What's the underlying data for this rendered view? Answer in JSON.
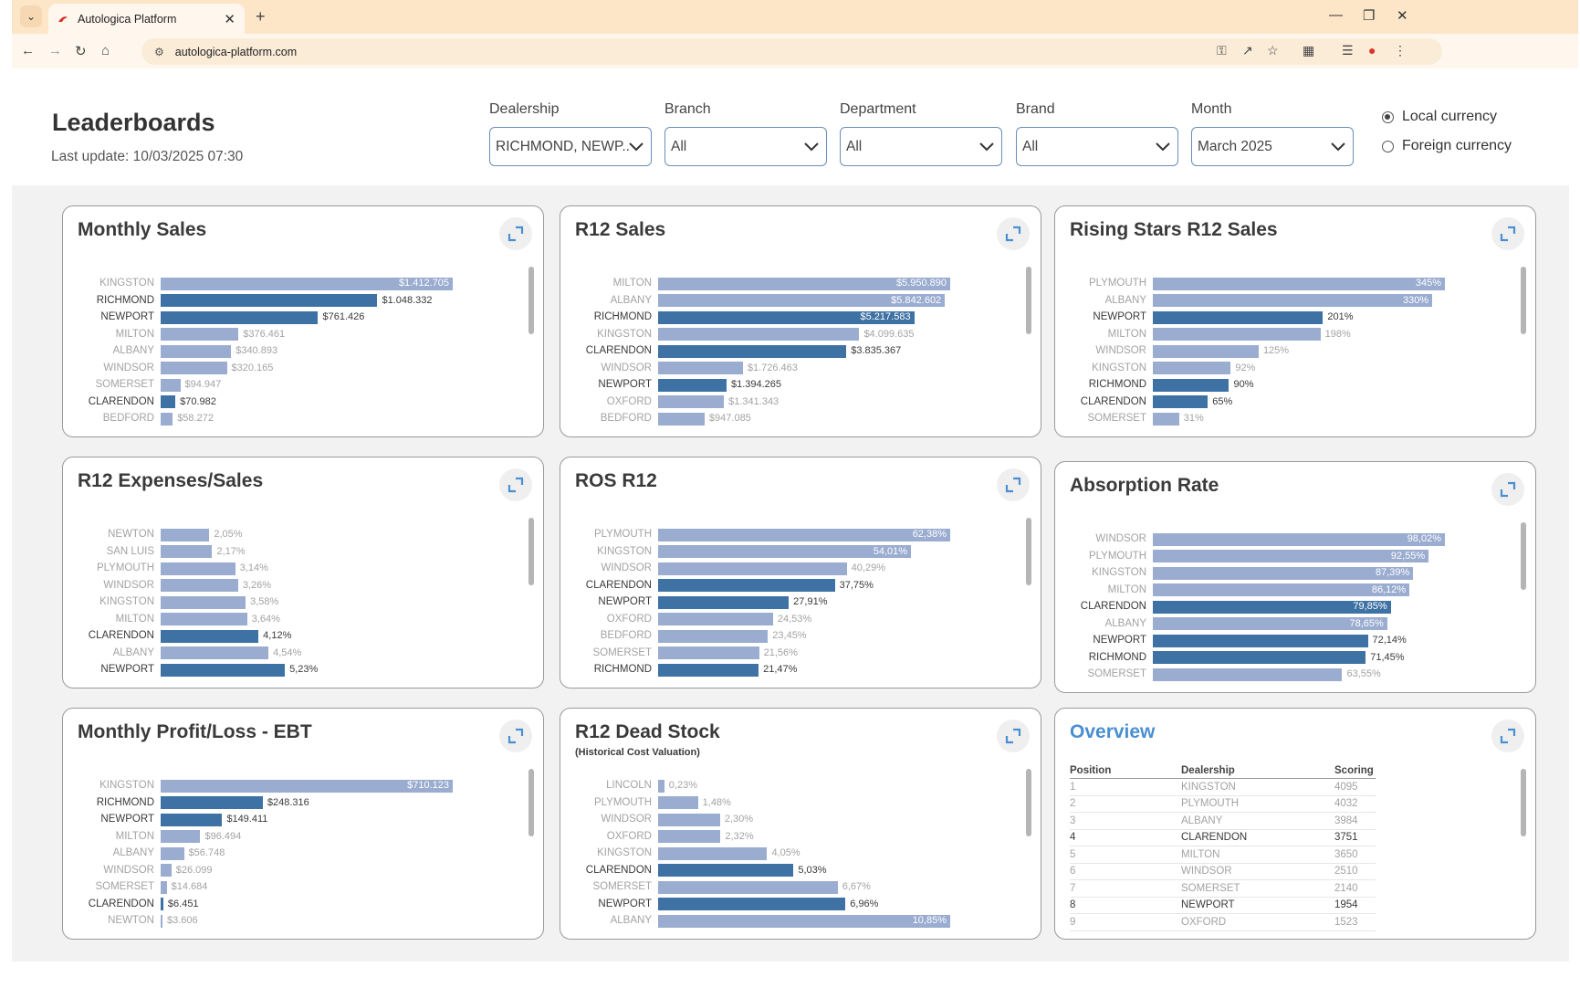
{
  "browser": {
    "tab_title": "Autologica Platform",
    "url": "autologica-platform.com"
  },
  "header": {
    "title": "Leaderboards",
    "last_update": "Last update: 10/03/2025 07:30"
  },
  "filters": {
    "dealership": {
      "label": "Dealership",
      "value": "RICHMOND, NEWP..."
    },
    "branch": {
      "label": "Branch",
      "value": "All"
    },
    "department": {
      "label": "Department",
      "value": "All"
    },
    "brand": {
      "label": "Brand",
      "value": "All"
    },
    "month": {
      "label": "Month",
      "value": "March 2025"
    }
  },
  "currency": {
    "local": "Local currency",
    "foreign": "Foreign currency",
    "selected": "local"
  },
  "colors": {
    "highlight": "#3e72a4",
    "other": "#9aacd0",
    "accent": "#4a8fd1"
  },
  "cards": [
    {
      "title": "Monthly Sales",
      "subtitle": "",
      "max": 1412705,
      "rows": [
        {
          "label": "KINGSTON",
          "value": 1412705,
          "text": "$1.412.705",
          "hl": false
        },
        {
          "label": "RICHMOND",
          "value": 1048332,
          "text": "$1.048.332",
          "hl": true
        },
        {
          "label": "NEWPORT",
          "value": 761426,
          "text": "$761.426",
          "hl": true
        },
        {
          "label": "MILTON",
          "value": 376461,
          "text": "$376.461",
          "hl": false
        },
        {
          "label": "ALBANY",
          "value": 340893,
          "text": "$340.893",
          "hl": false
        },
        {
          "label": "WINDSOR",
          "value": 320165,
          "text": "$320.165",
          "hl": false
        },
        {
          "label": "SOMERSET",
          "value": 94947,
          "text": "$94.947",
          "hl": false
        },
        {
          "label": "CLARENDON",
          "value": 70982,
          "text": "$70.982",
          "hl": true
        },
        {
          "label": "BEDFORD",
          "value": 58272,
          "text": "$58.272",
          "hl": false
        }
      ]
    },
    {
      "title": "R12 Sales",
      "subtitle": "",
      "max": 5950890,
      "rows": [
        {
          "label": "MILTON",
          "value": 5950890,
          "text": "$5.950.890",
          "hl": false
        },
        {
          "label": "ALBANY",
          "value": 5842602,
          "text": "$5.842.602",
          "hl": false
        },
        {
          "label": "RICHMOND",
          "value": 5217583,
          "text": "$5.217.583",
          "hl": true
        },
        {
          "label": "KINGSTON",
          "value": 4099635,
          "text": "$4.099.635",
          "hl": false
        },
        {
          "label": "CLARENDON",
          "value": 3835367,
          "text": "$3.835.367",
          "hl": true
        },
        {
          "label": "WINDSOR",
          "value": 1726463,
          "text": "$1.726.463",
          "hl": false
        },
        {
          "label": "NEWPORT",
          "value": 1394265,
          "text": "$1.394.265",
          "hl": true
        },
        {
          "label": "OXFORD",
          "value": 1341343,
          "text": "$1.341.343",
          "hl": false
        },
        {
          "label": "BEDFORD",
          "value": 947085,
          "text": "$947.085",
          "hl": false
        }
      ]
    },
    {
      "title": "Rising Stars R12 Sales",
      "subtitle": "",
      "max": 345,
      "rows": [
        {
          "label": "PLYMOUTH",
          "value": 345,
          "text": "345%",
          "hl": false
        },
        {
          "label": "ALBANY",
          "value": 330,
          "text": "330%",
          "hl": false
        },
        {
          "label": "NEWPORT",
          "value": 201,
          "text": "201%",
          "hl": true
        },
        {
          "label": "MILTON",
          "value": 198,
          "text": "198%",
          "hl": false
        },
        {
          "label": "WINDSOR",
          "value": 125,
          "text": "125%",
          "hl": false
        },
        {
          "label": "KINGSTON",
          "value": 92,
          "text": "92%",
          "hl": false
        },
        {
          "label": "RICHMOND",
          "value": 90,
          "text": "90%",
          "hl": true
        },
        {
          "label": "CLARENDON",
          "value": 65,
          "text": "65%",
          "hl": true
        },
        {
          "label": "SOMERSET",
          "value": 31,
          "text": "31%",
          "hl": false
        }
      ]
    },
    {
      "title": "R12 Expenses/Sales",
      "subtitle": "",
      "max": 12.3,
      "rows": [
        {
          "label": "NEWTON",
          "value": 2.05,
          "text": "2,05%",
          "hl": false
        },
        {
          "label": "SAN LUIS",
          "value": 2.17,
          "text": "2,17%",
          "hl": false
        },
        {
          "label": "PLYMOUTH",
          "value": 3.14,
          "text": "3,14%",
          "hl": false
        },
        {
          "label": "WINDSOR",
          "value": 3.26,
          "text": "3,26%",
          "hl": false
        },
        {
          "label": "KINGSTON",
          "value": 3.58,
          "text": "3,58%",
          "hl": false
        },
        {
          "label": "MILTON",
          "value": 3.64,
          "text": "3,64%",
          "hl": false
        },
        {
          "label": "CLARENDON",
          "value": 4.12,
          "text": "4,12%",
          "hl": true
        },
        {
          "label": "ALBANY",
          "value": 4.54,
          "text": "4,54%",
          "hl": false
        },
        {
          "label": "NEWPORT",
          "value": 5.23,
          "text": "5,23%",
          "hl": true
        }
      ]
    },
    {
      "title": "ROS R12",
      "subtitle": "",
      "max": 62.38,
      "rows": [
        {
          "label": "PLYMOUTH",
          "value": 62.38,
          "text": "62,38%",
          "hl": false
        },
        {
          "label": "KINGSTON",
          "value": 54.01,
          "text": "54,01%",
          "hl": false
        },
        {
          "label": "WINDSOR",
          "value": 40.29,
          "text": "40,29%",
          "hl": false
        },
        {
          "label": "CLARENDON",
          "value": 37.75,
          "text": "37,75%",
          "hl": true
        },
        {
          "label": "NEWPORT",
          "value": 27.91,
          "text": "27,91%",
          "hl": true
        },
        {
          "label": "OXFORD",
          "value": 24.53,
          "text": "24,53%",
          "hl": false
        },
        {
          "label": "BEDFORD",
          "value": 23.45,
          "text": "23,45%",
          "hl": false
        },
        {
          "label": "SOMERSET",
          "value": 21.56,
          "text": "21,56%",
          "hl": false
        },
        {
          "label": "RICHMOND",
          "value": 21.47,
          "text": "21,47%",
          "hl": true
        }
      ]
    },
    {
      "title": "Absorption Rate",
      "subtitle": "",
      "max": 98.02,
      "rows": [
        {
          "label": "WINDSOR",
          "value": 98.02,
          "text": "98,02%",
          "hl": false
        },
        {
          "label": "PLYMOUTH",
          "value": 92.55,
          "text": "92,55%",
          "hl": false
        },
        {
          "label": "KINGSTON",
          "value": 87.39,
          "text": "87,39%",
          "hl": false
        },
        {
          "label": "MILTON",
          "value": 86.12,
          "text": "86,12%",
          "hl": false
        },
        {
          "label": "CLARENDON",
          "value": 79.85,
          "text": "79,85%",
          "hl": true
        },
        {
          "label": "ALBANY",
          "value": 78.65,
          "text": "78,65%",
          "hl": false
        },
        {
          "label": "NEWPORT",
          "value": 72.14,
          "text": "72,14%",
          "hl": true
        },
        {
          "label": "RICHMOND",
          "value": 71.45,
          "text": "71,45%",
          "hl": true
        },
        {
          "label": "SOMERSET",
          "value": 63.55,
          "text": "63,55%",
          "hl": false
        }
      ]
    },
    {
      "title": "Monthly Profit/Loss - EBT",
      "subtitle": "",
      "max": 710123,
      "rows": [
        {
          "label": "KINGSTON",
          "value": 710123,
          "text": "$710.123",
          "hl": false
        },
        {
          "label": "RICHMOND",
          "value": 248316,
          "text": "$248.316",
          "hl": true
        },
        {
          "label": "NEWPORT",
          "value": 149411,
          "text": "$149.411",
          "hl": true
        },
        {
          "label": "MILTON",
          "value": 96494,
          "text": "$96.494",
          "hl": false
        },
        {
          "label": "ALBANY",
          "value": 56748,
          "text": "$56.748",
          "hl": false
        },
        {
          "label": "WINDSOR",
          "value": 26099,
          "text": "$26.099",
          "hl": false
        },
        {
          "label": "SOMERSET",
          "value": 14684,
          "text": "$14.684",
          "hl": false
        },
        {
          "label": "CLARENDON",
          "value": 6451,
          "text": "$6.451",
          "hl": true
        },
        {
          "label": "NEWTON",
          "value": 3606,
          "text": "$3.606",
          "hl": false
        }
      ]
    },
    {
      "title": "R12 Dead Stock",
      "subtitle": "(Historical Cost Valuation)",
      "max": 10.85,
      "rows": [
        {
          "label": "LINCOLN",
          "value": 0.23,
          "text": "0,23%",
          "hl": false
        },
        {
          "label": "PLYMOUTH",
          "value": 1.48,
          "text": "1,48%",
          "hl": false
        },
        {
          "label": "WINDSOR",
          "value": 2.3,
          "text": "2,30%",
          "hl": false
        },
        {
          "label": "OXFORD",
          "value": 2.32,
          "text": "2,32%",
          "hl": false
        },
        {
          "label": "KINGSTON",
          "value": 4.05,
          "text": "4,05%",
          "hl": false
        },
        {
          "label": "CLARENDON",
          "value": 5.03,
          "text": "5,03%",
          "hl": true
        },
        {
          "label": "SOMERSET",
          "value": 6.67,
          "text": "6,67%",
          "hl": false
        },
        {
          "label": "NEWPORT",
          "value": 6.96,
          "text": "6,96%",
          "hl": true
        },
        {
          "label": "ALBANY",
          "value": 10.85,
          "text": "10,85%",
          "hl": false
        }
      ]
    }
  ],
  "overview": {
    "title": "Overview",
    "columns": [
      "Position",
      "Dealership",
      "Scoring"
    ],
    "rows": [
      {
        "position": "1",
        "dealership": "KINGSTON",
        "scoring": "4095",
        "hl": false
      },
      {
        "position": "2",
        "dealership": "PLYMOUTH",
        "scoring": "4032",
        "hl": false
      },
      {
        "position": "3",
        "dealership": "ALBANY",
        "scoring": "3984",
        "hl": false
      },
      {
        "position": "4",
        "dealership": "CLARENDON",
        "scoring": "3751",
        "hl": true
      },
      {
        "position": "5",
        "dealership": "MILTON",
        "scoring": "3650",
        "hl": false
      },
      {
        "position": "6",
        "dealership": "WINDSOR",
        "scoring": "2510",
        "hl": false
      },
      {
        "position": "7",
        "dealership": "SOMERSET",
        "scoring": "2140",
        "hl": false
      },
      {
        "position": "8",
        "dealership": "NEWPORT",
        "scoring": "1954",
        "hl": true
      },
      {
        "position": "9",
        "dealership": "OXFORD",
        "scoring": "1523",
        "hl": false
      }
    ]
  }
}
